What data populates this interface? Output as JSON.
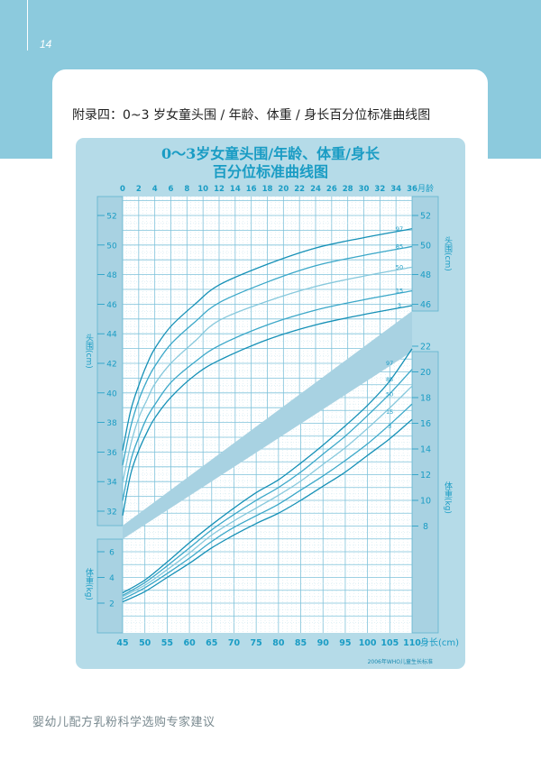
{
  "page": {
    "page_number": "14",
    "heading": "附录四：0~3 岁女童头围 / 年龄、体重 / 身长百分位标准曲线图",
    "footer": "婴幼儿配方乳粉科学选购专家建议",
    "colors": {
      "header_band": "#8ccadd",
      "panel": "#b5dbe8",
      "accent": "#1a9cc4"
    }
  },
  "chart_data": {
    "type": "line",
    "title_line1": "0～3岁女童头围/年龄、体重/身长",
    "title_line2": "百分位标准曲线图",
    "source_note": "2006年WHO儿童生长标准",
    "grid": true,
    "head_circumference": {
      "xlabel": "月龄",
      "ylabel": "头围(cm)",
      "xlim": [
        0,
        36
      ],
      "ylim": [
        31,
        53
      ],
      "x_ticks": [
        0,
        2,
        4,
        6,
        8,
        10,
        12,
        14,
        16,
        18,
        20,
        22,
        24,
        26,
        28,
        30,
        32,
        34,
        36
      ],
      "y_ticks_left": [
        32,
        34,
        36,
        38,
        40,
        42,
        44,
        46,
        48,
        50,
        52
      ],
      "y_ticks_right": [
        46,
        48,
        50,
        52
      ],
      "x": [
        0,
        1,
        2,
        3,
        4,
        6,
        9,
        12,
        18,
        24,
        30,
        36
      ],
      "series": [
        {
          "name": "97",
          "values": [
            36.1,
            38.8,
            40.5,
            41.9,
            43.0,
            44.5,
            46.0,
            47.3,
            48.7,
            49.8,
            50.5,
            51.1
          ]
        },
        {
          "name": "85",
          "values": [
            35.1,
            37.7,
            39.5,
            40.8,
            41.8,
            43.3,
            44.8,
            46.1,
            47.5,
            48.6,
            49.3,
            49.9
          ]
        },
        {
          "name": "50",
          "values": [
            33.9,
            36.5,
            38.3,
            39.5,
            40.6,
            42.0,
            43.5,
            44.9,
            46.2,
            47.2,
            47.9,
            48.5
          ]
        },
        {
          "name": "15",
          "values": [
            32.7,
            35.4,
            37.0,
            38.3,
            39.2,
            40.7,
            42.1,
            43.2,
            44.6,
            45.6,
            46.3,
            46.9
          ]
        },
        {
          "name": "3",
          "values": [
            31.7,
            34.5,
            36.1,
            37.3,
            38.3,
            39.7,
            41.2,
            42.2,
            43.6,
            44.6,
            45.3,
            45.9
          ]
        }
      ]
    },
    "weight_for_length": {
      "xlabel": "身长(cm)",
      "ylabel": "体重(kg)",
      "xlim": [
        45,
        110
      ],
      "ylim": [
        0.8,
        23
      ],
      "x_ticks": [
        45,
        50,
        55,
        60,
        65,
        70,
        75,
        80,
        85,
        90,
        95,
        100,
        105,
        110
      ],
      "y_ticks_left": [
        2,
        4,
        6
      ],
      "y_ticks_right": [
        8,
        10,
        12,
        14,
        16,
        18,
        20,
        22
      ],
      "x": [
        45,
        50,
        55,
        60,
        65,
        70,
        75,
        80,
        85,
        90,
        95,
        100,
        105,
        110
      ],
      "series": [
        {
          "name": "97",
          "values": [
            2.8,
            3.8,
            5.2,
            6.7,
            8.1,
            9.4,
            10.6,
            11.6,
            12.9,
            14.3,
            15.8,
            17.4,
            19.3,
            21.8
          ]
        },
        {
          "name": "85",
          "values": [
            2.6,
            3.6,
            4.9,
            6.3,
            7.7,
            8.9,
            10.0,
            11.0,
            12.2,
            13.6,
            15.0,
            16.6,
            18.3,
            20.2
          ]
        },
        {
          "name": "50",
          "values": [
            2.5,
            3.4,
            4.6,
            5.9,
            7.3,
            8.4,
            9.4,
            10.4,
            11.5,
            12.8,
            14.1,
            15.6,
            17.2,
            18.9
          ]
        },
        {
          "name": "15",
          "values": [
            2.3,
            3.2,
            4.3,
            5.5,
            6.8,
            7.9,
            8.8,
            9.7,
            10.8,
            11.9,
            13.1,
            14.4,
            15.9,
            17.5
          ]
        },
        {
          "name": "3",
          "values": [
            2.1,
            2.9,
            4.0,
            5.1,
            6.3,
            7.3,
            8.2,
            9.0,
            10.0,
            11.1,
            12.2,
            13.5,
            14.8,
            16.3
          ]
        }
      ]
    }
  }
}
